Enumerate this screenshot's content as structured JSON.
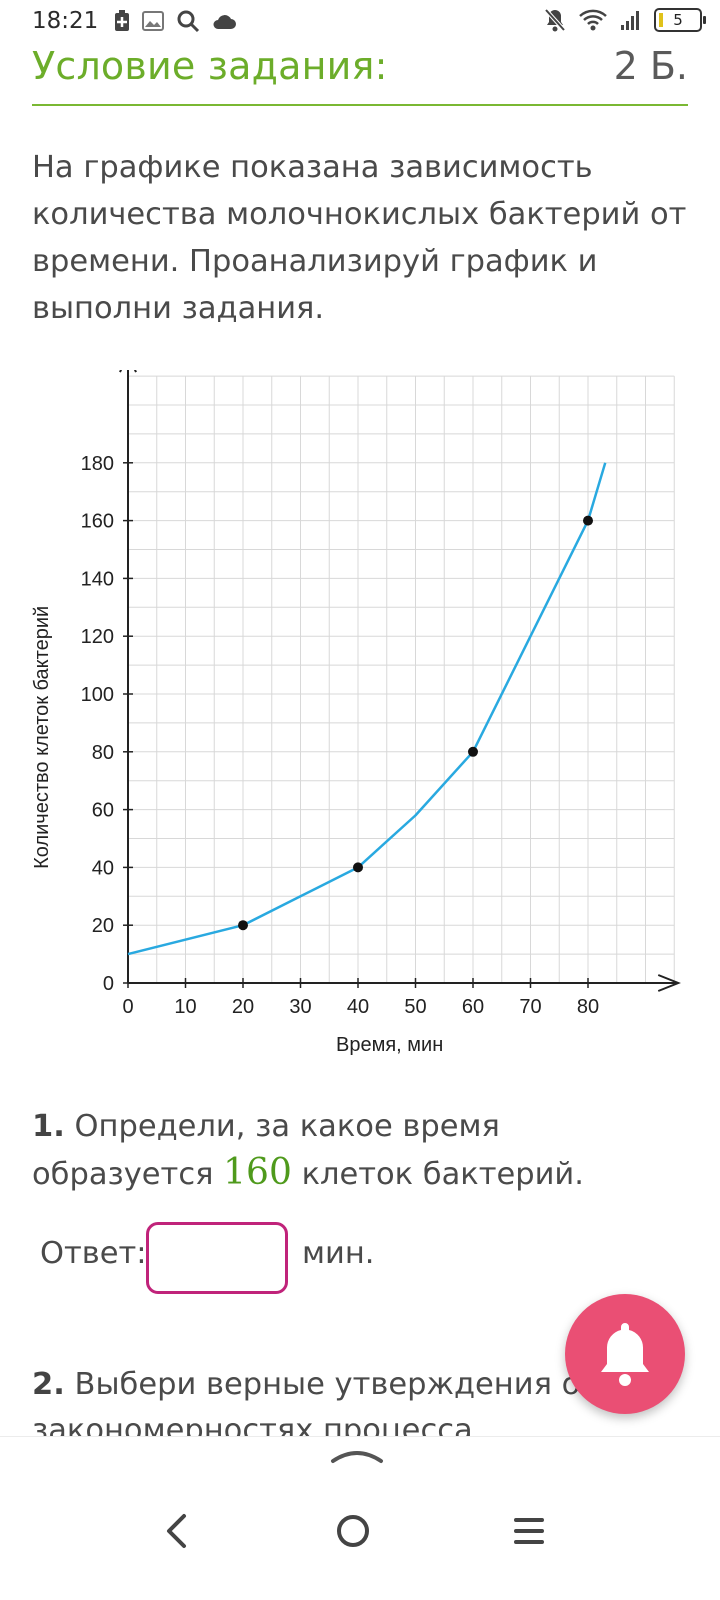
{
  "status_bar": {
    "time": "18:21",
    "battery_level": "5",
    "icons": [
      "plus-box-icon",
      "image-icon",
      "search-icon",
      "cloud-icon",
      "mute-icon",
      "wifi-icon",
      "signal-icon",
      "battery-icon"
    ]
  },
  "header": {
    "title": "Условие задания:",
    "points": "2 Б."
  },
  "task_text": "На графике показана зависимость количества молочнокислых бактерий от времени. Проанализируй график и выполни задания.",
  "chart_data": {
    "type": "line",
    "xlabel": "Время, мин",
    "ylabel": "Количество клеток бактерий",
    "x_ticks": [
      "0",
      "10",
      "20",
      "30",
      "40",
      "50",
      "60",
      "70",
      "80"
    ],
    "y_ticks": [
      "0",
      "20",
      "40",
      "60",
      "80",
      "100",
      "120",
      "140",
      "160",
      "180"
    ],
    "xlim": [
      0,
      95
    ],
    "ylim": [
      0,
      210
    ],
    "grid": true,
    "line_color": "#29a9e0",
    "series": [
      {
        "x": [
          0,
          20,
          30,
          40,
          50,
          60,
          70,
          80,
          83
        ],
        "y": [
          10,
          20,
          30,
          40,
          58,
          80,
          120,
          160,
          180
        ]
      }
    ],
    "marked_points": [
      {
        "x": 20,
        "y": 20
      },
      {
        "x": 40,
        "y": 40
      },
      {
        "x": 60,
        "y": 80
      },
      {
        "x": 80,
        "y": 160
      }
    ]
  },
  "question1": {
    "number": "1.",
    "text_before": "Определи, за какое время образуется",
    "highlight": "160",
    "text_after": "клеток бактерий."
  },
  "answer": {
    "label": "Ответ:",
    "value": "",
    "unit": "мин."
  },
  "question2": {
    "number": "2.",
    "text": "Выбери верные утверждения о закономерностях процесса"
  },
  "colors": {
    "accent_green": "#6cad2a",
    "input_border": "#c0237a",
    "bell_button": "#ea4f74"
  }
}
